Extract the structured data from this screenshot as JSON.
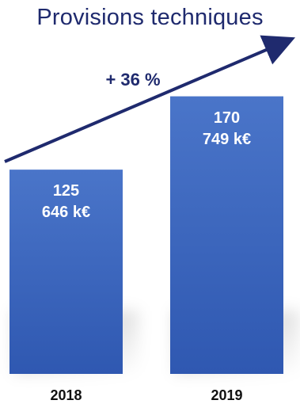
{
  "chart_data": {
    "type": "bar",
    "title": "Provisions techniques",
    "categories": [
      "2018",
      "2019"
    ],
    "values": [
      125646,
      170749
    ],
    "value_labels": [
      {
        "line1": "125",
        "line2": "646 k€"
      },
      {
        "line1": "170",
        "line2": "749 k€"
      }
    ],
    "unit": "k€",
    "growth_annotation": "+ 36 %",
    "ylim": [
      0,
      230000
    ],
    "grid": false,
    "colors": {
      "bar_top": "#4a75c9",
      "bar_bottom": "#2f58b1",
      "arrow": "#1f2a6e",
      "title": "#1f2a6e"
    }
  }
}
